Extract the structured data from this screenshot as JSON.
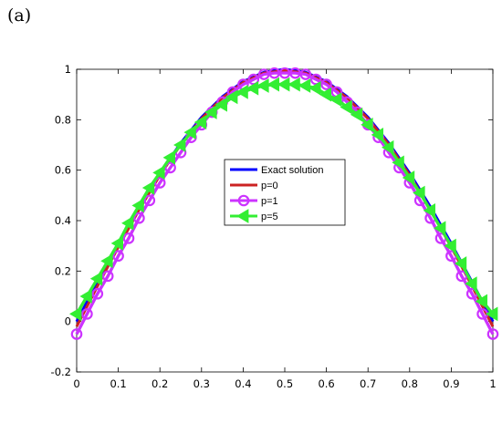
{
  "panel_label": "(a)",
  "chart_data": {
    "type": "line",
    "title": "",
    "xlabel": "",
    "ylabel": "",
    "xlim": [
      0,
      1
    ],
    "ylim": [
      -0.2,
      1
    ],
    "x_ticks": [
      "0",
      "0.1",
      "0.2",
      "0.3",
      "0.4",
      "0.5",
      "0.6",
      "0.7",
      "0.8",
      "0.9",
      "1"
    ],
    "y_ticks": [
      "-0.2",
      "0",
      "0.2",
      "0.4",
      "0.6",
      "0.8",
      "1"
    ],
    "grid": false,
    "legend": {
      "position": "center",
      "entries": [
        "Exact solution",
        "p=0",
        "p=1",
        "p=5"
      ]
    },
    "series": [
      {
        "name": "Exact solution",
        "color": "#0000ff",
        "marker": "none",
        "x": [
          0,
          0.05,
          0.1,
          0.15,
          0.2,
          0.25,
          0.3,
          0.35,
          0.4,
          0.45,
          0.5,
          0.55,
          0.6,
          0.65,
          0.7,
          0.75,
          0.8,
          0.85,
          0.9,
          0.95,
          1
        ],
        "y": [
          0,
          0.156,
          0.309,
          0.454,
          0.588,
          0.707,
          0.809,
          0.891,
          0.951,
          0.988,
          1,
          0.988,
          0.951,
          0.891,
          0.809,
          0.707,
          0.588,
          0.454,
          0.309,
          0.156,
          0
        ]
      },
      {
        "name": "p=0",
        "color": "#cc2222",
        "marker": "none",
        "x": [
          0,
          0.05,
          0.1,
          0.15,
          0.2,
          0.25,
          0.3,
          0.35,
          0.4,
          0.45,
          0.5,
          0.55,
          0.6,
          0.65,
          0.7,
          0.75,
          0.8,
          0.85,
          0.9,
          0.95,
          1
        ],
        "y": [
          -0.02,
          0.14,
          0.295,
          0.443,
          0.58,
          0.701,
          0.804,
          0.887,
          0.948,
          0.985,
          0.995,
          0.985,
          0.948,
          0.887,
          0.804,
          0.701,
          0.58,
          0.443,
          0.295,
          0.14,
          -0.02
        ]
      },
      {
        "name": "p=1",
        "color": "#cc33ff",
        "marker": "circle",
        "x": [
          0,
          0.025,
          0.05,
          0.075,
          0.1,
          0.125,
          0.15,
          0.175,
          0.2,
          0.225,
          0.25,
          0.275,
          0.3,
          0.325,
          0.35,
          0.375,
          0.4,
          0.425,
          0.45,
          0.475,
          0.5,
          0.525,
          0.55,
          0.575,
          0.6,
          0.625,
          0.65,
          0.675,
          0.7,
          0.725,
          0.75,
          0.775,
          0.8,
          0.825,
          0.85,
          0.875,
          0.9,
          0.925,
          0.95,
          0.975,
          1
        ],
        "y": [
          -0.05,
          0.03,
          0.11,
          0.18,
          0.26,
          0.33,
          0.41,
          0.48,
          0.55,
          0.61,
          0.67,
          0.73,
          0.78,
          0.83,
          0.87,
          0.91,
          0.94,
          0.96,
          0.98,
          0.985,
          0.985,
          0.985,
          0.98,
          0.96,
          0.94,
          0.91,
          0.87,
          0.83,
          0.78,
          0.73,
          0.67,
          0.61,
          0.55,
          0.48,
          0.41,
          0.33,
          0.26,
          0.18,
          0.11,
          0.03,
          -0.05
        ]
      },
      {
        "name": "p=5",
        "color": "#33ee33",
        "marker": "triangle-left",
        "x": [
          0,
          0.025,
          0.05,
          0.075,
          0.1,
          0.125,
          0.15,
          0.175,
          0.2,
          0.225,
          0.25,
          0.275,
          0.3,
          0.325,
          0.35,
          0.375,
          0.4,
          0.425,
          0.45,
          0.475,
          0.5,
          0.525,
          0.55,
          0.575,
          0.6,
          0.625,
          0.65,
          0.675,
          0.7,
          0.725,
          0.75,
          0.775,
          0.8,
          0.825,
          0.85,
          0.875,
          0.9,
          0.925,
          0.95,
          0.975,
          1
        ],
        "y": [
          0.03,
          0.1,
          0.17,
          0.24,
          0.31,
          0.39,
          0.46,
          0.53,
          0.59,
          0.65,
          0.7,
          0.75,
          0.79,
          0.83,
          0.86,
          0.89,
          0.91,
          0.925,
          0.935,
          0.94,
          0.94,
          0.94,
          0.935,
          0.925,
          0.9,
          0.88,
          0.85,
          0.82,
          0.78,
          0.74,
          0.69,
          0.63,
          0.57,
          0.51,
          0.44,
          0.37,
          0.3,
          0.23,
          0.15,
          0.08,
          0.03
        ]
      }
    ]
  }
}
